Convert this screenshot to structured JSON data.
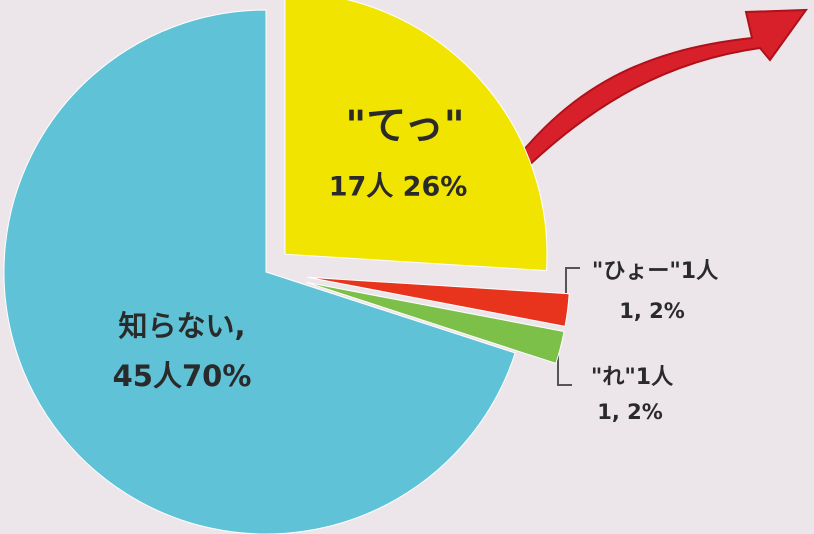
{
  "chart_data": {
    "type": "pie",
    "categories": [
      "\"てっ\"",
      "\"ひょー\"1人",
      "\"れ\"1人",
      "知らない,"
    ],
    "values": [
      26,
      2,
      2,
      70
    ],
    "value_labels": [
      "17人 26%",
      "1, 2%",
      "1, 2%",
      "45人70%"
    ],
    "colors": [
      "#f1e400",
      "#e8341c",
      "#7cc04a",
      "#5fc2d6"
    ]
  }
}
